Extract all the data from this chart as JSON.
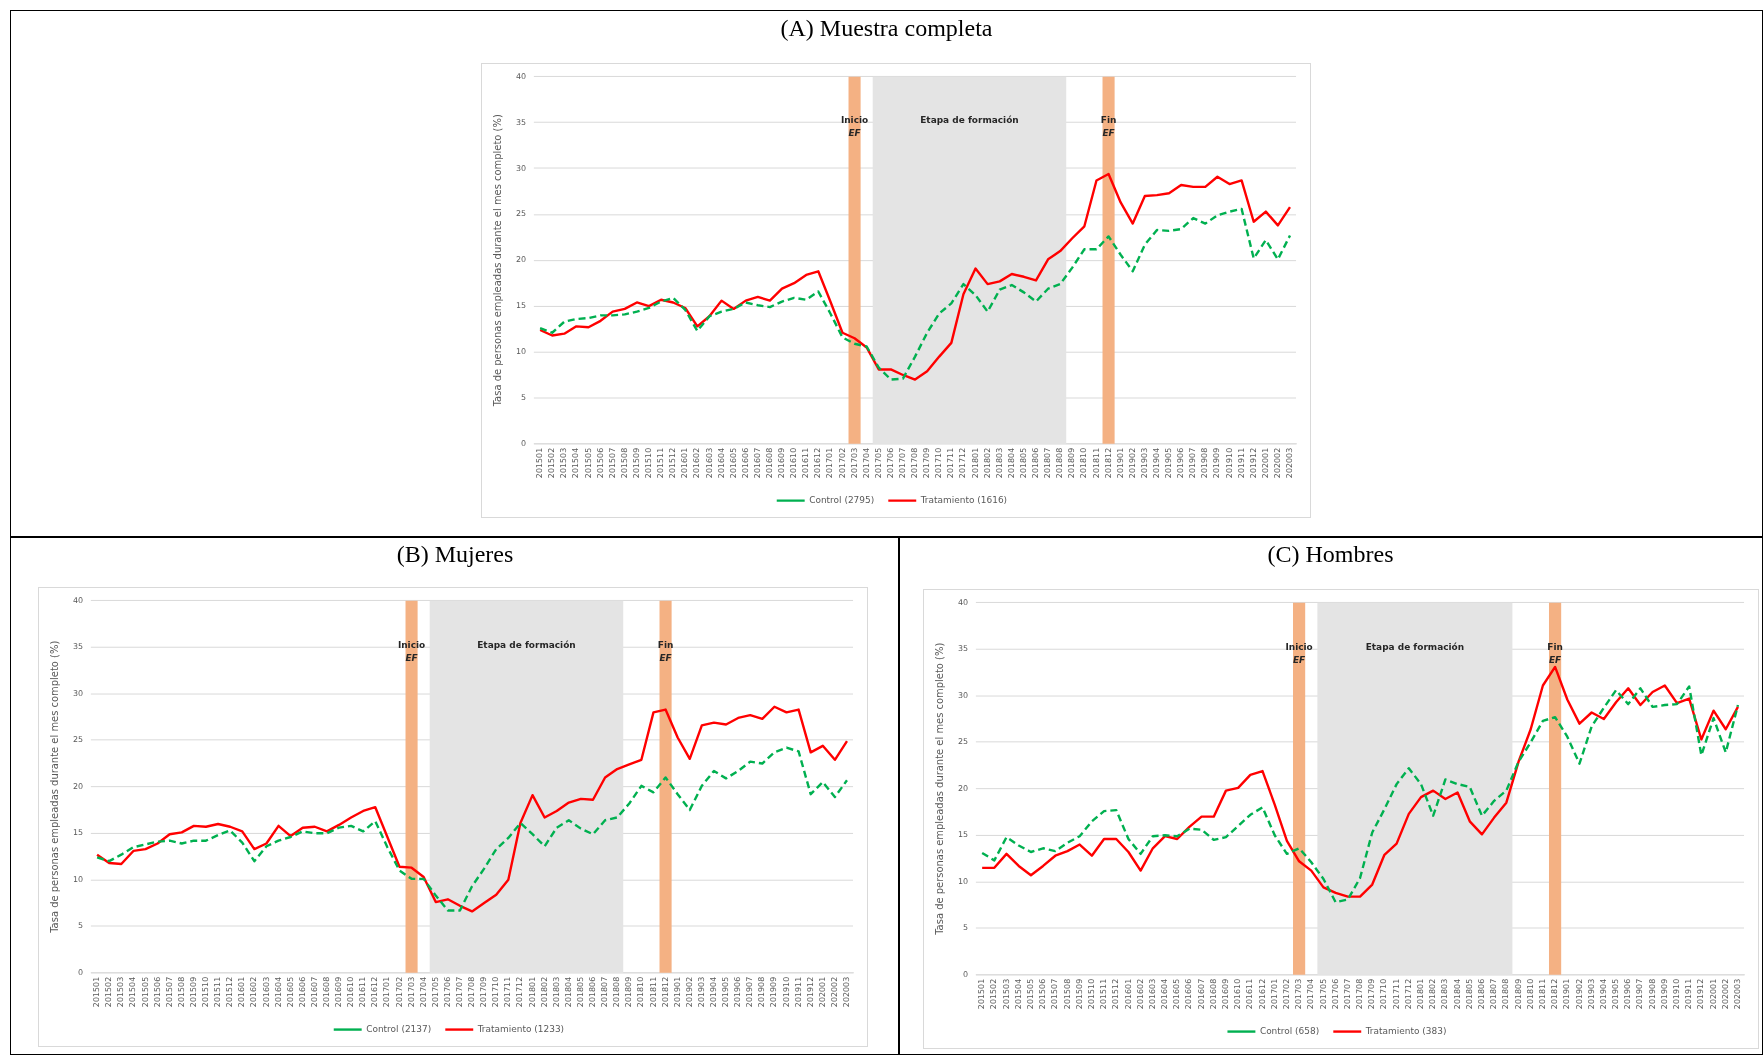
{
  "chart_data": [
    {
      "type": "line",
      "title": "(A) Muestra completa",
      "ylabel": "Tasa de personas empleadas durante el mes completo (%)",
      "categories": [
        "201501",
        "201502",
        "201503",
        "201504",
        "201505",
        "201506",
        "201507",
        "201508",
        "201509",
        "201510",
        "201511",
        "201512",
        "201601",
        "201602",
        "201603",
        "201604",
        "201605",
        "201606",
        "201607",
        "201608",
        "201609",
        "201610",
        "201611",
        "201612",
        "201701",
        "201702",
        "201703",
        "201704",
        "201705",
        "201706",
        "201707",
        "201708",
        "201709",
        "201710",
        "201711",
        "201712",
        "201801",
        "201802",
        "201803",
        "201804",
        "201805",
        "201806",
        "201807",
        "201808",
        "201809",
        "201810",
        "201811",
        "201812",
        "201901",
        "201902",
        "201903",
        "201904",
        "201905",
        "201906",
        "201907",
        "201908",
        "201909",
        "201910",
        "201911",
        "201912",
        "202001",
        "202002",
        "202003"
      ],
      "series": [
        {
          "name": "Control (2795)",
          "color": "#00b050",
          "line_style": "dashed",
          "values": [
            12.6,
            12.1,
            13.3,
            13.6,
            13.7,
            14.0,
            14.0,
            14.1,
            14.4,
            14.8,
            15.5,
            15.9,
            14.6,
            12.3,
            13.9,
            14.4,
            14.7,
            15.4,
            15.1,
            14.9,
            15.5,
            15.9,
            15.7,
            16.6,
            14.2,
            11.6,
            10.9,
            10.6,
            8.3,
            7.0,
            7.1,
            9.5,
            12.1,
            14.2,
            15.3,
            17.4,
            16.2,
            14.4,
            16.8,
            17.3,
            16.5,
            15.5,
            16.9,
            17.4,
            19.2,
            21.2,
            21.2,
            22.6,
            20.6,
            18.8,
            21.7,
            23.3,
            23.2,
            23.4,
            24.6,
            24.0,
            24.9,
            25.3,
            25.6,
            20.2,
            22.2,
            20.1,
            22.7
          ]
        },
        {
          "name": "Tratamiento (1616)",
          "color": "#ff0000",
          "line_style": "solid",
          "values": [
            12.4,
            11.8,
            12.0,
            12.8,
            12.7,
            13.4,
            14.4,
            14.7,
            15.4,
            15.0,
            15.7,
            15.4,
            14.8,
            12.8,
            13.9,
            15.6,
            14.7,
            15.6,
            16.0,
            15.6,
            16.9,
            17.5,
            18.4,
            18.8,
            15.5,
            12.1,
            11.5,
            10.5,
            8.1,
            8.1,
            7.5,
            7.0,
            7.9,
            9.5,
            11.0,
            16.3,
            19.1,
            17.4,
            17.7,
            18.5,
            18.2,
            17.8,
            20.1,
            21.0,
            22.4,
            23.7,
            28.7,
            29.4,
            26.3,
            24.0,
            27.0,
            27.1,
            27.3,
            28.2,
            28.0,
            28.0,
            29.1,
            28.3,
            28.7,
            24.2,
            25.3,
            23.8,
            25.8
          ]
        }
      ],
      "ylim": [
        0,
        40
      ],
      "yticks": [
        0,
        5,
        10,
        15,
        20,
        25,
        30,
        35,
        40
      ],
      "grid": "y",
      "legend": "bottom",
      "marker": "none",
      "bands": [
        {
          "axis": "x",
          "from": "201703",
          "to": "201703",
          "label": "Inicio EF",
          "color": "#f4b183"
        },
        {
          "axis": "x",
          "from": "201705",
          "to": "201808",
          "label": "Etapa de formación",
          "color": "#e4e4e4"
        },
        {
          "axis": "x",
          "from": "201812",
          "to": "201812",
          "label": "Fin EF",
          "color": "#f4b183"
        }
      ]
    },
    {
      "type": "line",
      "title": "(B) Mujeres",
      "ylabel": "Tasa de personas empleadas durante el mes completo (%)",
      "categories": [
        "201501",
        "201502",
        "201503",
        "201504",
        "201505",
        "201506",
        "201507",
        "201508",
        "201509",
        "201510",
        "201511",
        "201512",
        "201601",
        "201602",
        "201603",
        "201604",
        "201605",
        "201606",
        "201607",
        "201608",
        "201609",
        "201610",
        "201611",
        "201612",
        "201701",
        "201702",
        "201703",
        "201704",
        "201705",
        "201706",
        "201707",
        "201708",
        "201709",
        "201710",
        "201711",
        "201712",
        "201801",
        "201802",
        "201803",
        "201804",
        "201805",
        "201806",
        "201807",
        "201808",
        "201809",
        "201810",
        "201811",
        "201812",
        "201901",
        "201902",
        "201903",
        "201904",
        "201905",
        "201906",
        "201907",
        "201908",
        "201909",
        "201910",
        "201911",
        "201912",
        "202001",
        "202002",
        "202003"
      ],
      "series": [
        {
          "name": "Control (2137)",
          "color": "#00b050",
          "line_style": "dashed",
          "values": [
            12.4,
            12.0,
            12.7,
            13.5,
            13.8,
            14.1,
            14.2,
            13.9,
            14.2,
            14.2,
            14.8,
            15.3,
            14.0,
            12.0,
            13.6,
            14.2,
            14.6,
            15.2,
            15.0,
            15.0,
            15.6,
            15.8,
            15.2,
            16.3,
            13.5,
            11.0,
            10.1,
            10.1,
            8.3,
            6.7,
            6.7,
            9.3,
            11.2,
            13.3,
            14.5,
            16.1,
            14.9,
            13.6,
            15.6,
            16.4,
            15.5,
            14.9,
            16.4,
            16.7,
            18.2,
            20.1,
            19.4,
            21.0,
            19.2,
            17.5,
            20.1,
            21.7,
            20.9,
            21.7,
            22.7,
            22.5,
            23.7,
            24.2,
            23.8,
            19.2,
            20.5,
            18.9,
            20.7
          ]
        },
        {
          "name": "Tratamiento (1233)",
          "color": "#ff0000",
          "line_style": "solid",
          "values": [
            12.7,
            11.8,
            11.7,
            13.1,
            13.3,
            13.9,
            14.9,
            15.1,
            15.8,
            15.7,
            16.0,
            15.7,
            15.2,
            13.3,
            13.9,
            15.8,
            14.7,
            15.6,
            15.7,
            15.2,
            15.9,
            16.7,
            17.4,
            17.8,
            14.6,
            11.4,
            11.3,
            10.3,
            7.6,
            7.9,
            7.2,
            6.6,
            7.5,
            8.4,
            10.0,
            16.1,
            19.1,
            16.7,
            17.4,
            18.3,
            18.7,
            18.6,
            21.0,
            21.9,
            22.4,
            22.9,
            28.0,
            28.3,
            25.3,
            23.0,
            26.6,
            26.9,
            26.7,
            27.4,
            27.7,
            27.3,
            28.6,
            28.0,
            28.3,
            23.7,
            24.4,
            22.9,
            24.9
          ]
        }
      ],
      "ylim": [
        0,
        40
      ],
      "yticks": [
        0,
        5,
        10,
        15,
        20,
        25,
        30,
        35,
        40
      ],
      "grid": "y",
      "legend": "bottom",
      "marker": "none",
      "bands": [
        {
          "axis": "x",
          "from": "201703",
          "to": "201703",
          "label": "Inicio EF",
          "color": "#f4b183"
        },
        {
          "axis": "x",
          "from": "201705",
          "to": "201808",
          "label": "Etapa de formación",
          "color": "#e4e4e4"
        },
        {
          "axis": "x",
          "from": "201812",
          "to": "201812",
          "label": "Fin EF",
          "color": "#f4b183"
        }
      ]
    },
    {
      "type": "line",
      "title": "(C) Hombres",
      "ylabel": "Tasa de personas empleadas durante el mes completo (%)",
      "categories": [
        "201501",
        "201502",
        "201503",
        "201504",
        "201505",
        "201506",
        "201507",
        "201508",
        "201509",
        "201510",
        "201511",
        "201512",
        "201601",
        "201602",
        "201603",
        "201604",
        "201605",
        "201606",
        "201607",
        "201608",
        "201609",
        "201610",
        "201611",
        "201612",
        "201701",
        "201702",
        "201703",
        "201704",
        "201705",
        "201706",
        "201707",
        "201708",
        "201709",
        "201710",
        "201711",
        "201712",
        "201801",
        "201802",
        "201803",
        "201804",
        "201805",
        "201806",
        "201807",
        "201808",
        "201809",
        "201810",
        "201811",
        "201812",
        "201901",
        "201902",
        "201903",
        "201904",
        "201905",
        "201906",
        "201907",
        "201908",
        "201909",
        "201910",
        "201911",
        "201912",
        "202001",
        "202002",
        "202003"
      ],
      "series": [
        {
          "name": "Control (658)",
          "color": "#00b050",
          "line_style": "dashed",
          "values": [
            13.1,
            12.3,
            14.8,
            13.9,
            13.2,
            13.6,
            13.3,
            14.2,
            14.9,
            16.5,
            17.6,
            17.7,
            14.6,
            13.0,
            14.9,
            15.0,
            14.9,
            15.7,
            15.6,
            14.5,
            14.8,
            16.0,
            17.2,
            18.0,
            15.0,
            13.0,
            13.6,
            12.1,
            10.3,
            7.8,
            8.1,
            10.4,
            15.3,
            17.8,
            20.5,
            22.2,
            20.5,
            17.1,
            21.0,
            20.5,
            20.2,
            17.1,
            18.7,
            19.8,
            22.9,
            25.0,
            27.3,
            27.7,
            25.6,
            22.7,
            26.7,
            28.7,
            30.6,
            29.1,
            30.8,
            28.8,
            29.0,
            29.1,
            31.0,
            23.6,
            27.6,
            23.9,
            29.0
          ]
        },
        {
          "name": "Tratamiento (383)",
          "color": "#ff0000",
          "line_style": "solid",
          "values": [
            11.5,
            11.5,
            13.0,
            11.7,
            10.7,
            11.7,
            12.8,
            13.3,
            14.0,
            12.8,
            14.6,
            14.6,
            13.2,
            11.2,
            13.6,
            14.9,
            14.6,
            15.9,
            17.0,
            17.0,
            19.8,
            20.1,
            21.5,
            21.9,
            18.3,
            14.4,
            12.2,
            11.2,
            9.4,
            8.8,
            8.4,
            8.4,
            9.7,
            12.9,
            14.1,
            17.3,
            19.1,
            19.8,
            18.9,
            19.6,
            16.5,
            15.1,
            16.9,
            18.5,
            22.9,
            26.4,
            31.1,
            33.1,
            29.6,
            27.0,
            28.2,
            27.5,
            29.3,
            30.8,
            29.0,
            30.4,
            31.1,
            29.2,
            29.7,
            25.3,
            28.4,
            26.4,
            28.8
          ]
        }
      ],
      "ylim": [
        0,
        40
      ],
      "yticks": [
        0,
        5,
        10,
        15,
        20,
        25,
        30,
        35,
        40
      ],
      "grid": "y",
      "legend": "bottom",
      "marker": "none",
      "bands": [
        {
          "axis": "x",
          "from": "201703",
          "to": "201703",
          "label": "Inicio EF",
          "color": "#f4b183"
        },
        {
          "axis": "x",
          "from": "201705",
          "to": "201808",
          "label": "Etapa de formación",
          "color": "#e4e4e4"
        },
        {
          "axis": "x",
          "from": "201812",
          "to": "201812",
          "label": "Fin EF",
          "color": "#f4b183"
        }
      ]
    }
  ]
}
